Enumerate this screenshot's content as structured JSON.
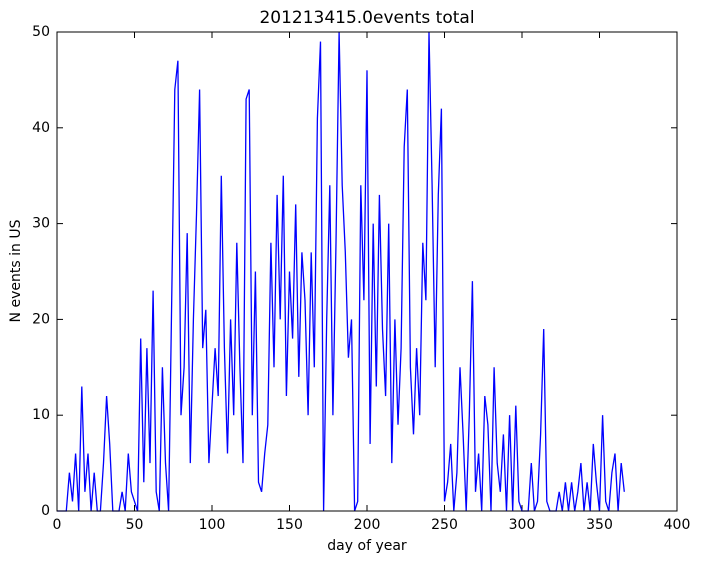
{
  "chart_data": {
    "type": "line",
    "title": "201213415.0events total",
    "x_label": "day of year",
    "y_label": "N events in US",
    "x": [
      0,
      2,
      4,
      6,
      8,
      10,
      12,
      14,
      16,
      18,
      20,
      22,
      24,
      26,
      28,
      30,
      32,
      34,
      36,
      38,
      40,
      42,
      44,
      46,
      48,
      50,
      52,
      54,
      56,
      58,
      60,
      62,
      64,
      66,
      68,
      70,
      72,
      74,
      76,
      78,
      80,
      82,
      84,
      86,
      88,
      90,
      92,
      94,
      96,
      98,
      100,
      102,
      104,
      106,
      108,
      110,
      112,
      114,
      116,
      118,
      120,
      122,
      124,
      126,
      128,
      130,
      132,
      134,
      136,
      138,
      140,
      142,
      144,
      146,
      148,
      150,
      152,
      154,
      156,
      158,
      160,
      162,
      164,
      166,
      168,
      170,
      172,
      174,
      176,
      178,
      180,
      182,
      184,
      186,
      188,
      190,
      192,
      194,
      196,
      198,
      200,
      202,
      204,
      206,
      208,
      210,
      212,
      214,
      216,
      218,
      220,
      222,
      224,
      226,
      228,
      230,
      232,
      234,
      236,
      238,
      240,
      242,
      244,
      246,
      248,
      250,
      252,
      254,
      256,
      258,
      260,
      262,
      264,
      266,
      268,
      270,
      272,
      274,
      276,
      278,
      280,
      282,
      284,
      286,
      288,
      290,
      292,
      294,
      296,
      298,
      300,
      302,
      304,
      306,
      308,
      310,
      312,
      314,
      316,
      318,
      320,
      322,
      324,
      326,
      328,
      330,
      332,
      334,
      336,
      338,
      340,
      342,
      344,
      346,
      348,
      350,
      352,
      354,
      356,
      358,
      360,
      362,
      364,
      366
    ],
    "series": [
      {
        "color": "#0000ff",
        "values": [
          0,
          0,
          0,
          0,
          4,
          1,
          6,
          0,
          13,
          2,
          6,
          0,
          4,
          0,
          0,
          5,
          12,
          7,
          0,
          0,
          0,
          2,
          0,
          6,
          2,
          1,
          0,
          18,
          3,
          17,
          5,
          23,
          2,
          0,
          15,
          5,
          0,
          22,
          44,
          47,
          10,
          15,
          29,
          5,
          20,
          31,
          44,
          17,
          21,
          5,
          11,
          17,
          12,
          35,
          17,
          6,
          20,
          10,
          28,
          15,
          5,
          43,
          44,
          10,
          25,
          3,
          2,
          6,
          9,
          28,
          15,
          33,
          20,
          35,
          12,
          25,
          18,
          32,
          14,
          27,
          22,
          10,
          27,
          15,
          41,
          49,
          0,
          20,
          34,
          10,
          28,
          50,
          34,
          27,
          16,
          20,
          0,
          1,
          34,
          22,
          46,
          7,
          30,
          13,
          33,
          19,
          12,
          30,
          5,
          20,
          9,
          17,
          38,
          44,
          15,
          8,
          17,
          10,
          28,
          22,
          50,
          34,
          15,
          33,
          42,
          1,
          3,
          7,
          0,
          4,
          15,
          8,
          0,
          10,
          24,
          2,
          6,
          0,
          12,
          9,
          0,
          15,
          5,
          2,
          8,
          0,
          10,
          0,
          11,
          1,
          0,
          0,
          0,
          5,
          0,
          1,
          8,
          19,
          1,
          0,
          0,
          0,
          2,
          0,
          3,
          0,
          3,
          0,
          2,
          5,
          0,
          3,
          0,
          7,
          3,
          0,
          10,
          1,
          0,
          4,
          6,
          0,
          5,
          2
        ]
      }
    ],
    "xlim": [
      0,
      400
    ],
    "xticks": [
      0,
      50,
      100,
      150,
      200,
      250,
      300,
      350,
      400
    ],
    "ylim": [
      0,
      50
    ],
    "yticks": [
      0,
      10,
      20,
      30,
      40,
      50
    ]
  }
}
